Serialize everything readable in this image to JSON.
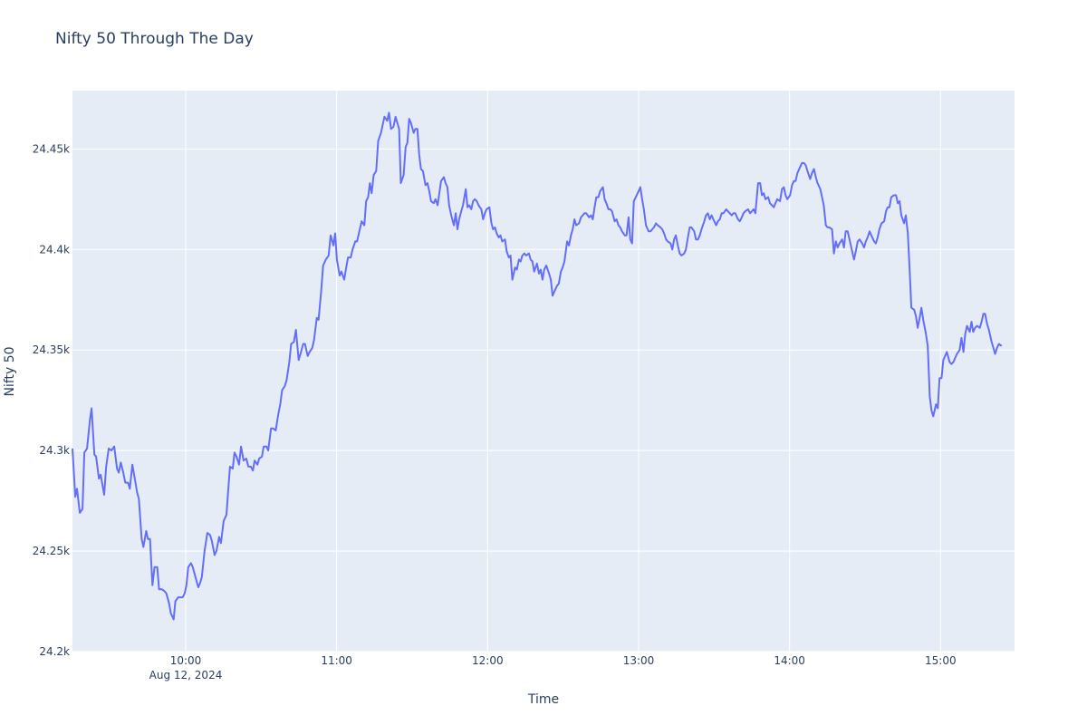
{
  "chart_data": {
    "type": "line",
    "title": "Nifty 50 Through The Day",
    "xlabel": "Time",
    "ylabel": "Nifty 50",
    "date_label": "Aug 12, 2024",
    "x_range": [
      "09:15",
      "15:29"
    ],
    "ylim": [
      24200,
      24479
    ],
    "y_ticks": [
      {
        "value": 24200,
        "label": "24.2k"
      },
      {
        "value": 24250,
        "label": "24.25k"
      },
      {
        "value": 24300,
        "label": "24.3k"
      },
      {
        "value": 24350,
        "label": "24.35k"
      },
      {
        "value": 24400,
        "label": "24.4k"
      },
      {
        "value": 24450,
        "label": "24.45k"
      }
    ],
    "x_ticks": [
      {
        "minutes": 60,
        "label": "10:00"
      },
      {
        "minutes": 120,
        "label": "11:00"
      },
      {
        "minutes": 180,
        "label": "12:00"
      },
      {
        "minutes": 240,
        "label": "13:00"
      },
      {
        "minutes": 300,
        "label": "14:00"
      },
      {
        "minutes": 360,
        "label": "15:00"
      }
    ],
    "grid": true,
    "legend": "none",
    "series": [
      {
        "name": "Nifty 50",
        "color": "#636efa",
        "x_minutes_from_0900": [
          15.0,
          16.1,
          16.8,
          17.9,
          19.0,
          19.7,
          20.8,
          21.9,
          22.6,
          23.7,
          24.4,
          25.5,
          26.2,
          27.6,
          28.4,
          29.4,
          30.5,
          31.6,
          32.7,
          33.4,
          34.2,
          35.2,
          36.0,
          37.1,
          37.8,
          38.8,
          39.9,
          40.7,
          41.4,
          42.5,
          43.2,
          44.3,
          45.0,
          45.8,
          46.8,
          47.6,
          48.7,
          49.4,
          50.5,
          51.6,
          52.3,
          53.4,
          54.1,
          55.2,
          55.9,
          57.0,
          57.7,
          58.8,
          59.6,
          60.3,
          61.0,
          62.1,
          62.8,
          63.9,
          65.0,
          65.7,
          66.4,
          67.5,
          68.6,
          69.7,
          70.4,
          71.5,
          72.2,
          73.3,
          74.0,
          75.1,
          76.2,
          76.9,
          77.6,
          78.7,
          79.4,
          80.2,
          81.2,
          82.0,
          83.0,
          84.1,
          84.9,
          85.9,
          86.7,
          87.4,
          88.5,
          89.2,
          90.3,
          91.0,
          92.1,
          92.8,
          93.9,
          94.7,
          95.8,
          96.8,
          97.6,
          98.3,
          99.4,
          100.1,
          101.2,
          101.9,
          103.0,
          103.8,
          104.9,
          105.6,
          106.7,
          107.4,
          108.5,
          109.2,
          110.3,
          111.0,
          112.1,
          112.8,
          113.9,
          114.6,
          115.7,
          116.8,
          117.6,
          118.7,
          119.4,
          120.1,
          121.2,
          121.9,
          123.0,
          123.8,
          124.5,
          125.6,
          126.3,
          127.4,
          128.1,
          129.2,
          129.9,
          131.0,
          131.7,
          132.5,
          133.2,
          133.9,
          134.7,
          135.7,
          136.5,
          137.6,
          138.3,
          139.0,
          140.1,
          140.8,
          141.6,
          142.6,
          143.4,
          144.1,
          144.8,
          145.5,
          146.6,
          147.4,
          148.1,
          148.8,
          149.5,
          150.6,
          151.3,
          152.1,
          152.8,
          153.5,
          154.3,
          155.3,
          156.1,
          156.8,
          157.5,
          158.6,
          159.3,
          160.1,
          160.8,
          161.5,
          162.6,
          163.3,
          164.0,
          164.7,
          165.5,
          166.6,
          167.3,
          168.0,
          168.7,
          169.5,
          170.2,
          171.3,
          172.0,
          172.7,
          173.5,
          174.2,
          174.9,
          175.7,
          176.4,
          177.5,
          178.2,
          178.9,
          179.6,
          180.7,
          181.5,
          182.2,
          182.9,
          183.6,
          184.4,
          185.1,
          185.8,
          186.9,
          187.6,
          188.4,
          189.1,
          189.8,
          190.9,
          191.6,
          192.4,
          193.1,
          193.8,
          194.6,
          195.3,
          196.4,
          197.1,
          197.8,
          198.5,
          199.6,
          200.4,
          201.1,
          201.8,
          202.5,
          203.3,
          204.4,
          205.1,
          205.8,
          206.5,
          207.6,
          208.3,
          209.1,
          209.8,
          210.5,
          211.6,
          212.3,
          213.1,
          213.8,
          214.5,
          215.2,
          216.3,
          217.1,
          217.8,
          218.5,
          219.2,
          220.3,
          221.1,
          221.8,
          222.5,
          223.2,
          224.0,
          224.7,
          225.8,
          226.5,
          227.2,
          228.0,
          228.7,
          229.4,
          230.5,
          231.2,
          232.0,
          232.7,
          233.4,
          234.5,
          235.2,
          236.0,
          236.7,
          237.4,
          238.1,
          238.9,
          240.0,
          240.7,
          241.4,
          242.1,
          242.9,
          244.0,
          244.7,
          245.4,
          246.1,
          246.9,
          247.6,
          248.7,
          249.4,
          250.1,
          250.9,
          251.6,
          252.7,
          253.4,
          254.1,
          254.8,
          255.6,
          256.3,
          257.0,
          258.1,
          258.8,
          259.6,
          260.3,
          261.0,
          262.1,
          262.8,
          263.6,
          264.3,
          265.0,
          266.1,
          266.8,
          267.5,
          268.3,
          269.0,
          269.7,
          270.8,
          271.5,
          272.3,
          273.0,
          273.7,
          274.8,
          275.5,
          276.2,
          277.0,
          277.7,
          278.4,
          279.5,
          280.2,
          281.0,
          281.7,
          282.4,
          283.5,
          284.3,
          285.0,
          285.7,
          286.4,
          287.5,
          288.3,
          289.0,
          289.7,
          290.4,
          291.5,
          292.2,
          293.0,
          293.7,
          294.4,
          295.1,
          296.2,
          297.0,
          297.7,
          298.4,
          299.1,
          300.2,
          301.0,
          301.7,
          302.4,
          303.1,
          304.2,
          304.9,
          305.7,
          306.4,
          307.1,
          308.2,
          308.9,
          309.7,
          310.4,
          311.1,
          312.2,
          312.9,
          313.6,
          314.4,
          315.1,
          315.8,
          316.9,
          317.6,
          318.4,
          319.1,
          319.8,
          320.9,
          321.6,
          322.3,
          323.1,
          323.8,
          324.9,
          325.6,
          326.3,
          327.1,
          327.8,
          328.9,
          329.6,
          330.3,
          331.0,
          331.8,
          332.5,
          333.6,
          334.3,
          335.0,
          335.7,
          336.5,
          337.6,
          338.3,
          339.0,
          339.7,
          340.4,
          341.5,
          342.3,
          343.0,
          343.7,
          344.4,
          345.5,
          346.2,
          347.0,
          347.7,
          348.4,
          349.5,
          350.2,
          350.9,
          351.7,
          352.4,
          353.1,
          354.2,
          354.9,
          355.7,
          356.4,
          357.1,
          358.2,
          358.9,
          359.6,
          360.4,
          361.1,
          361.8,
          362.5,
          363.6,
          364.3,
          365.1,
          365.8,
          366.5,
          367.6,
          368.3,
          369.1,
          369.8,
          370.5,
          371.6,
          372.3,
          373.0,
          373.7,
          374.5,
          375.6,
          376.3,
          377.0,
          377.7,
          378.5,
          379.2,
          380.3,
          381.0,
          381.7,
          382.4,
          383.2,
          384.3,
          385.0,
          385.7,
          386.5,
          387.2,
          388.3,
          389.0
        ],
        "values": [
          24301,
          24277,
          24281,
          24269,
          24271,
          24299,
          24301,
          24315,
          24321,
          24298,
          24297,
          24286,
          24288,
          24278,
          24292,
          24301,
          24300,
          24302,
          24291,
          24289,
          24294,
          24289,
          24284,
          24284,
          24281,
          24293,
          24285,
          24279,
          24276,
          24256,
          24252,
          24260,
          24256,
          24256,
          24233,
          24242,
          24242,
          24231,
          24231,
          24230,
          24229,
          24224,
          24219,
          24216,
          24225,
          24227,
          24227,
          24227,
          24229,
          24233,
          24242,
          24244,
          24242,
          24237,
          24232,
          24234,
          24237,
          24250,
          24259,
          24258,
          24255,
          24248,
          24250,
          24257,
          24254,
          24265,
          24268,
          24280,
          24292,
          24291,
          24299,
          24297,
          24293,
          24302,
          24295,
          24296,
          24292,
          24292,
          24290,
          24295,
          24293,
          24296,
          24297,
          24302,
          24302,
          24300,
          24311,
          24311,
          24310,
          24318,
          24323,
          24330,
          24332,
          24335,
          24344,
          24353,
          24354,
          24360,
          24345,
          24348,
          24353,
          24353,
          24347,
          24349,
          24351,
          24355,
          24366,
          24365,
          24380,
          24392,
          24395,
          24397,
          24407,
          24402,
          24408,
          24395,
          24387,
          24389,
          24385,
          24391,
          24396,
          24396,
          24400,
          24404,
          24404,
          24410,
          24414,
          24412,
          24424,
          24426,
          24433,
          24428,
          24437,
          24439,
          24454,
          24458,
          24462,
          24466,
          24464,
          24468,
          24460,
          24461,
          24466,
          24463,
          24460,
          24433,
          24437,
          24451,
          24453,
          24465,
          24463,
          24458,
          24460,
          24460,
          24447,
          24440,
          24439,
          24432,
          24433,
          24429,
          24424,
          24423,
          24425,
          24422,
          24428,
          24434,
          24436,
          24433,
          24431,
          24422,
          24417,
          24412,
          24418,
          24410,
          24415,
          24419,
          24422,
          24430,
          24421,
          24422,
          24420,
          24424,
          24425,
          24424,
          24422,
          24420,
          24415,
          24418,
          24420,
          24421,
          24413,
          24410,
          24411,
          24408,
          24406,
          24407,
          24404,
          24405,
          24399,
          24396,
          24397,
          24385,
          24391,
          24390,
          24395,
          24394,
          24397,
          24398,
          24397,
          24398,
          24395,
          24394,
          24389,
          24393,
          24388,
          24390,
          24385,
          24390,
          24392,
          24388,
          24385,
          24377,
          24379,
          24382,
          24383,
          24389,
          24391,
          24394,
          24404,
          24402,
          24407,
          24410,
          24415,
          24412,
          24413,
          24416,
          24417,
          24418,
          24418,
          24416,
          24417,
          24415,
          24421,
          24426,
          24426,
          24429,
          24431,
          24425,
          24423,
          24420,
          24420,
          24419,
          24414,
          24415,
          24412,
          24411,
          24409,
          24407,
          24407,
          24416,
          24405,
          24403,
          24424,
          24426,
          24429,
          24431,
          24425,
          24420,
          24412,
          24409,
          24409,
          24410,
          24411,
          24413,
          24412,
          24411,
          24410,
          24408,
          24405,
          24404,
          24403,
          24400,
          24405,
          24407,
          24402,
          24398,
          24397,
          24398,
          24400,
          24406,
          24411,
          24411,
          24409,
          24405,
          24405,
          24407,
          24410,
          24414,
          24417,
          24418,
          24415,
          24417,
          24415,
          24412,
          24414,
          24415,
          24418,
          24418,
          24420,
          24419,
          24418,
          24417,
          24418,
          24418,
          24415,
          24414,
          24416,
          24418,
          24419,
          24420,
          24418,
          24419,
          24420,
          24418,
          24433,
          24433,
          24427,
          24428,
          24425,
          24426,
          24423,
          24422,
          24421,
          24423,
          24425,
          24424,
          24430,
          24431,
          24427,
          24425,
          24427,
          24432,
          24434,
          24434,
          24438,
          24441,
          24443,
          24443,
          24442,
          24439,
          24435,
          24438,
          24440,
          24436,
          24433,
          24430,
          24426,
          24422,
          24412,
          24411,
          24411,
          24410,
          24398,
          24404,
          24401,
          24403,
          24405,
          24401,
          24409,
          24409,
          24405,
          24399,
          24395,
          24399,
          24404,
          24405,
          24403,
          24401,
          24404,
          24406,
          24409,
          24407,
          24404,
          24403,
          24406,
          24410,
          24413,
          24414,
          24419,
          24421,
          24421,
          24426,
          24427,
          24427,
          24423,
          24424,
          24417,
          24413,
          24417,
          24408,
          24390,
          24371,
          24370,
          24367,
          24361,
          24366,
          24371,
          24365,
          24358,
          24352,
          24327,
          24320,
          24317,
          24323,
          24321,
          24336,
          24336,
          24345,
          24347,
          24349,
          24344,
          24343,
          24344,
          24346,
          24348,
          24350,
          24356,
          24349,
          24358,
          24362,
          24359,
          24364,
          24359,
          24361,
          24362,
          24361,
          24364,
          24368,
          24368,
          24363,
          24360,
          24354,
          24351,
          24348,
          24351,
          24353,
          24352
        ]
      }
    ]
  },
  "layout": {
    "plot_bg": "#e5ecf6",
    "grid_color": "#ffffff",
    "text_color": "#2a3f5f"
  }
}
